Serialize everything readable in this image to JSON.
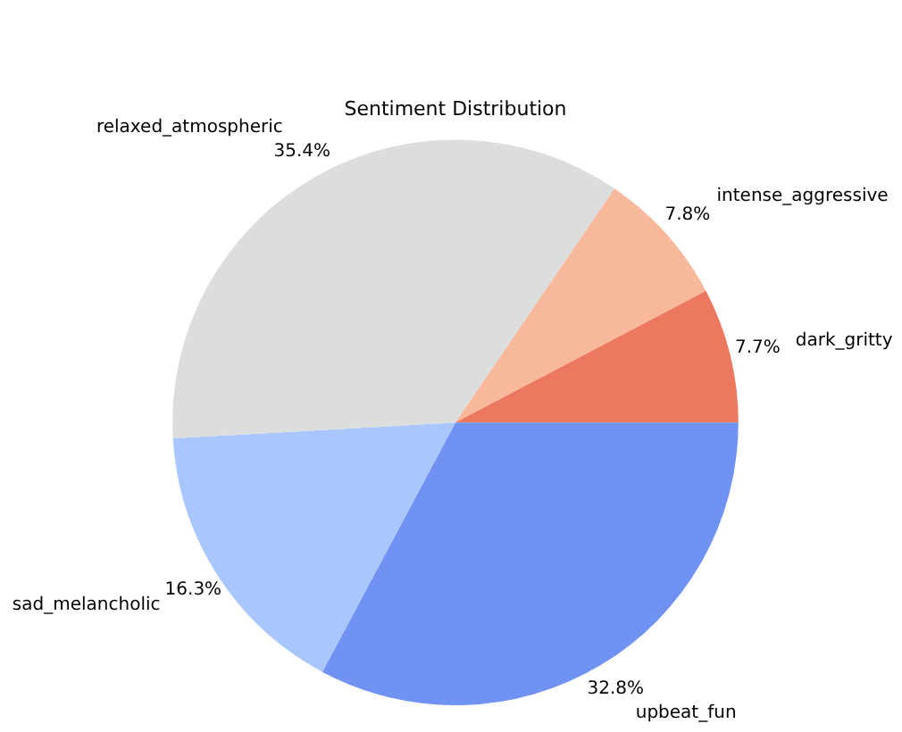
{
  "chart_data": {
    "type": "pie",
    "title": "Sentiment Distribution",
    "categories": [
      "dark_gritty",
      "intense_aggressive",
      "relaxed_atmospheric",
      "sad_melancholic",
      "upbeat_fun"
    ],
    "values": [
      7.7,
      7.8,
      35.4,
      16.3,
      32.8
    ],
    "value_labels": [
      "7.7%",
      "7.8%",
      "35.4%",
      "16.3%",
      "32.8%"
    ],
    "colors": [
      "#ec7860",
      "#f7b89c",
      "#dcdddd",
      "#aac7fd",
      "#6f92f3"
    ],
    "legend": false
  }
}
